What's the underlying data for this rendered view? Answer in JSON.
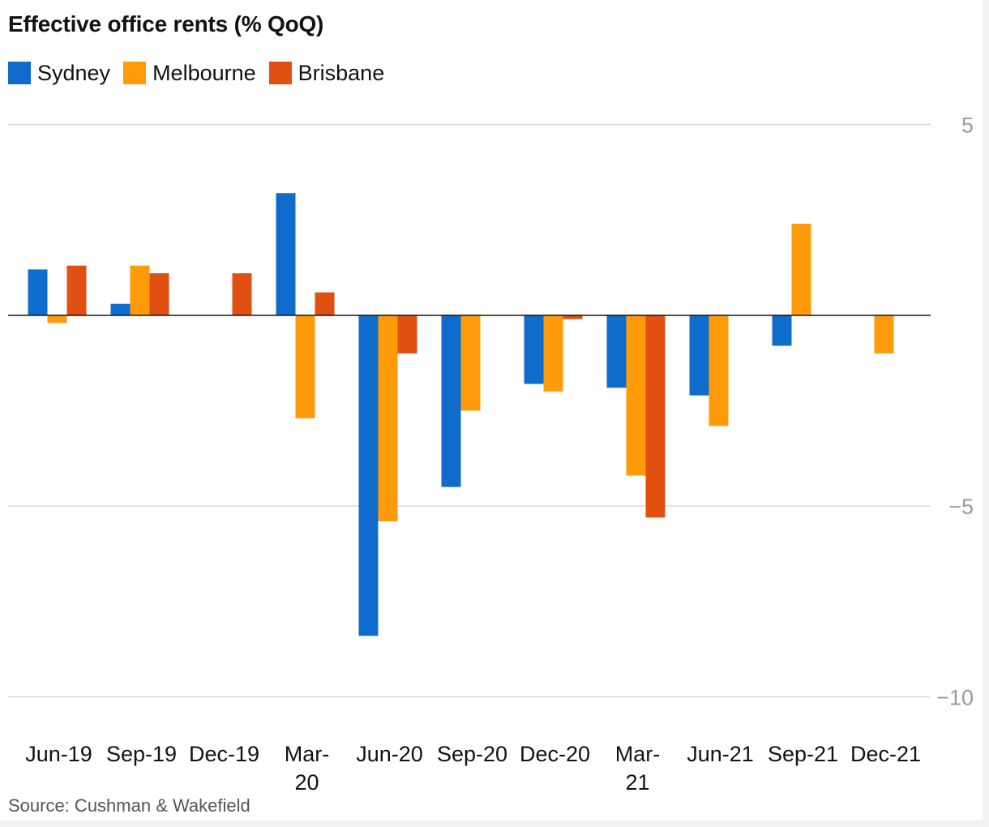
{
  "chart_data": {
    "type": "bar",
    "title": "Effective office rents (% QoQ)",
    "source": "Source: Cushman & Wakefield",
    "categories": [
      "Jun-19",
      "Sep-19",
      "Dec-19",
      "Mar-20",
      "Jun-20",
      "Sep-20",
      "Dec-20",
      "Mar-21",
      "Jun-21",
      "Sep-21",
      "Dec-21"
    ],
    "category_lines": [
      [
        "Jun-19"
      ],
      [
        "Sep-19"
      ],
      [
        "Dec-19"
      ],
      [
        "Mar-",
        "20"
      ],
      [
        "Jun-20"
      ],
      [
        "Sep-20"
      ],
      [
        "Dec-20"
      ],
      [
        "Mar-",
        "21"
      ],
      [
        "Jun-21"
      ],
      [
        "Sep-21"
      ],
      [
        "Dec-21"
      ]
    ],
    "series": [
      {
        "name": "Sydney",
        "color": "#0f6ccc",
        "values": [
          1.2,
          0.3,
          0,
          3.2,
          -8.4,
          -4.5,
          -1.8,
          -1.9,
          -2.1,
          -0.8,
          0
        ]
      },
      {
        "name": "Melbourne",
        "color": "#ff9b0b",
        "values": [
          -0.2,
          1.3,
          0,
          -2.7,
          -5.4,
          -2.5,
          -2.0,
          -4.2,
          -2.9,
          2.4,
          -1.0
        ]
      },
      {
        "name": "Brisbane",
        "color": "#e05010",
        "values": [
          1.3,
          1.1,
          1.1,
          0.6,
          -1.0,
          0,
          -0.1,
          -5.3,
          0,
          0,
          0
        ]
      }
    ],
    "ylim": [
      -10,
      5
    ],
    "yticks": [
      5,
      -5,
      -10
    ],
    "ytick_labels": [
      "5",
      "−5",
      "−10"
    ],
    "grid": true,
    "legend_position": "top-left"
  }
}
